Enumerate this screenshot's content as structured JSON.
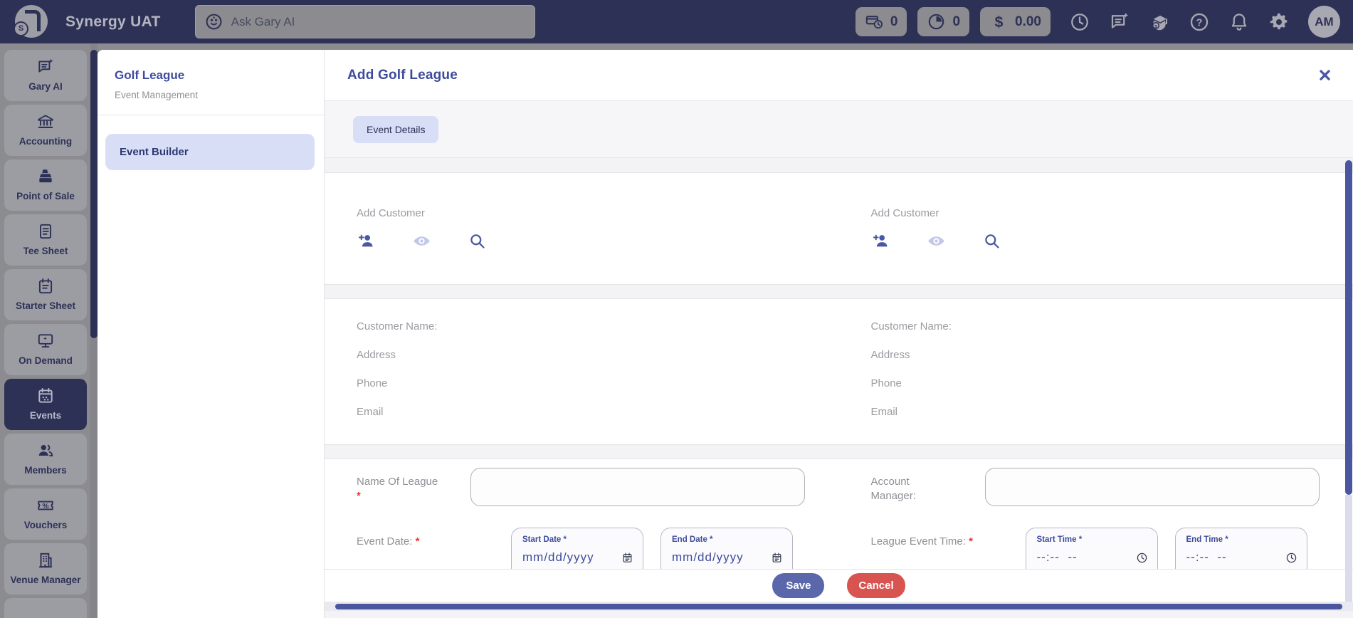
{
  "colors": {
    "navbar_bg": "#2d3156",
    "accent_indigo": "#3d4b9c",
    "lavender": "#d9def7",
    "save_button": "#5a68ab",
    "cancel_button": "#d85450",
    "scrollbar_thumb": "#4a579e",
    "required_red": "#e8352e"
  },
  "navbar": {
    "app_title": "Synergy UAT",
    "search_placeholder": "Ask Gary AI",
    "pills": [
      {
        "icon": "pos-clock",
        "value": "0"
      },
      {
        "icon": "pie-clock",
        "value": "0"
      },
      {
        "icon": "dollar",
        "value": "0.00"
      }
    ],
    "action_icons": [
      {
        "name": "clock"
      },
      {
        "name": "chat-sparkle"
      },
      {
        "name": "training"
      },
      {
        "name": "help"
      },
      {
        "name": "bell"
      },
      {
        "name": "gear"
      }
    ],
    "avatar_initials": "AM"
  },
  "sidebar": {
    "items": [
      {
        "label": "Gary AI",
        "icon": "chat-sparkle",
        "active": false
      },
      {
        "label": "Accounting",
        "icon": "bank",
        "active": false
      },
      {
        "label": "Point of Sale",
        "icon": "register",
        "active": false
      },
      {
        "label": "Tee Sheet",
        "icon": "doc",
        "active": false
      },
      {
        "label": "Starter Sheet",
        "icon": "clipboard",
        "active": false
      },
      {
        "label": "On Demand",
        "icon": "monitor",
        "active": false
      },
      {
        "label": "Events",
        "icon": "calendar",
        "active": true
      },
      {
        "label": "Members",
        "icon": "people",
        "active": false
      },
      {
        "label": "Vouchers",
        "icon": "ticket",
        "active": false
      },
      {
        "label": "Venue Manager",
        "icon": "building",
        "active": false
      }
    ]
  },
  "modal": {
    "nav": {
      "title": "Golf League",
      "subtitle": "Event Management",
      "selected_item": "Event Builder"
    },
    "header": {
      "title": "Add Golf League"
    },
    "tab": {
      "label": "Event Details"
    },
    "customers": [
      {
        "add_label": "Add Customer",
        "icons": [
          "person-add",
          "eye",
          "search"
        ],
        "info_labels": [
          "Customer Name:",
          "Address",
          "Phone",
          "Email"
        ]
      },
      {
        "add_label": "Add Customer",
        "icons": [
          "person-add",
          "eye",
          "search"
        ],
        "info_labels": [
          "Customer Name:",
          "Address",
          "Phone",
          "Email"
        ]
      }
    ],
    "form": {
      "required_marker": "*",
      "name_of_league_label": "Name Of League",
      "account_manager_label": "Account Manager:",
      "event_date_label": "Event Date:",
      "league_event_time_label": "League Event Time:",
      "start_date": {
        "label": "Start Date *",
        "placeholder": "mm/dd/yyyy"
      },
      "end_date": {
        "label": "End Date *",
        "placeholder": "mm/dd/yyyy"
      },
      "start_time": {
        "label": "Start Time *",
        "placeholder": "--:--  --"
      },
      "end_time": {
        "label": "End Time *",
        "placeholder": "--:--  --"
      }
    },
    "footer": {
      "save_label": "Save",
      "cancel_label": "Cancel"
    }
  }
}
